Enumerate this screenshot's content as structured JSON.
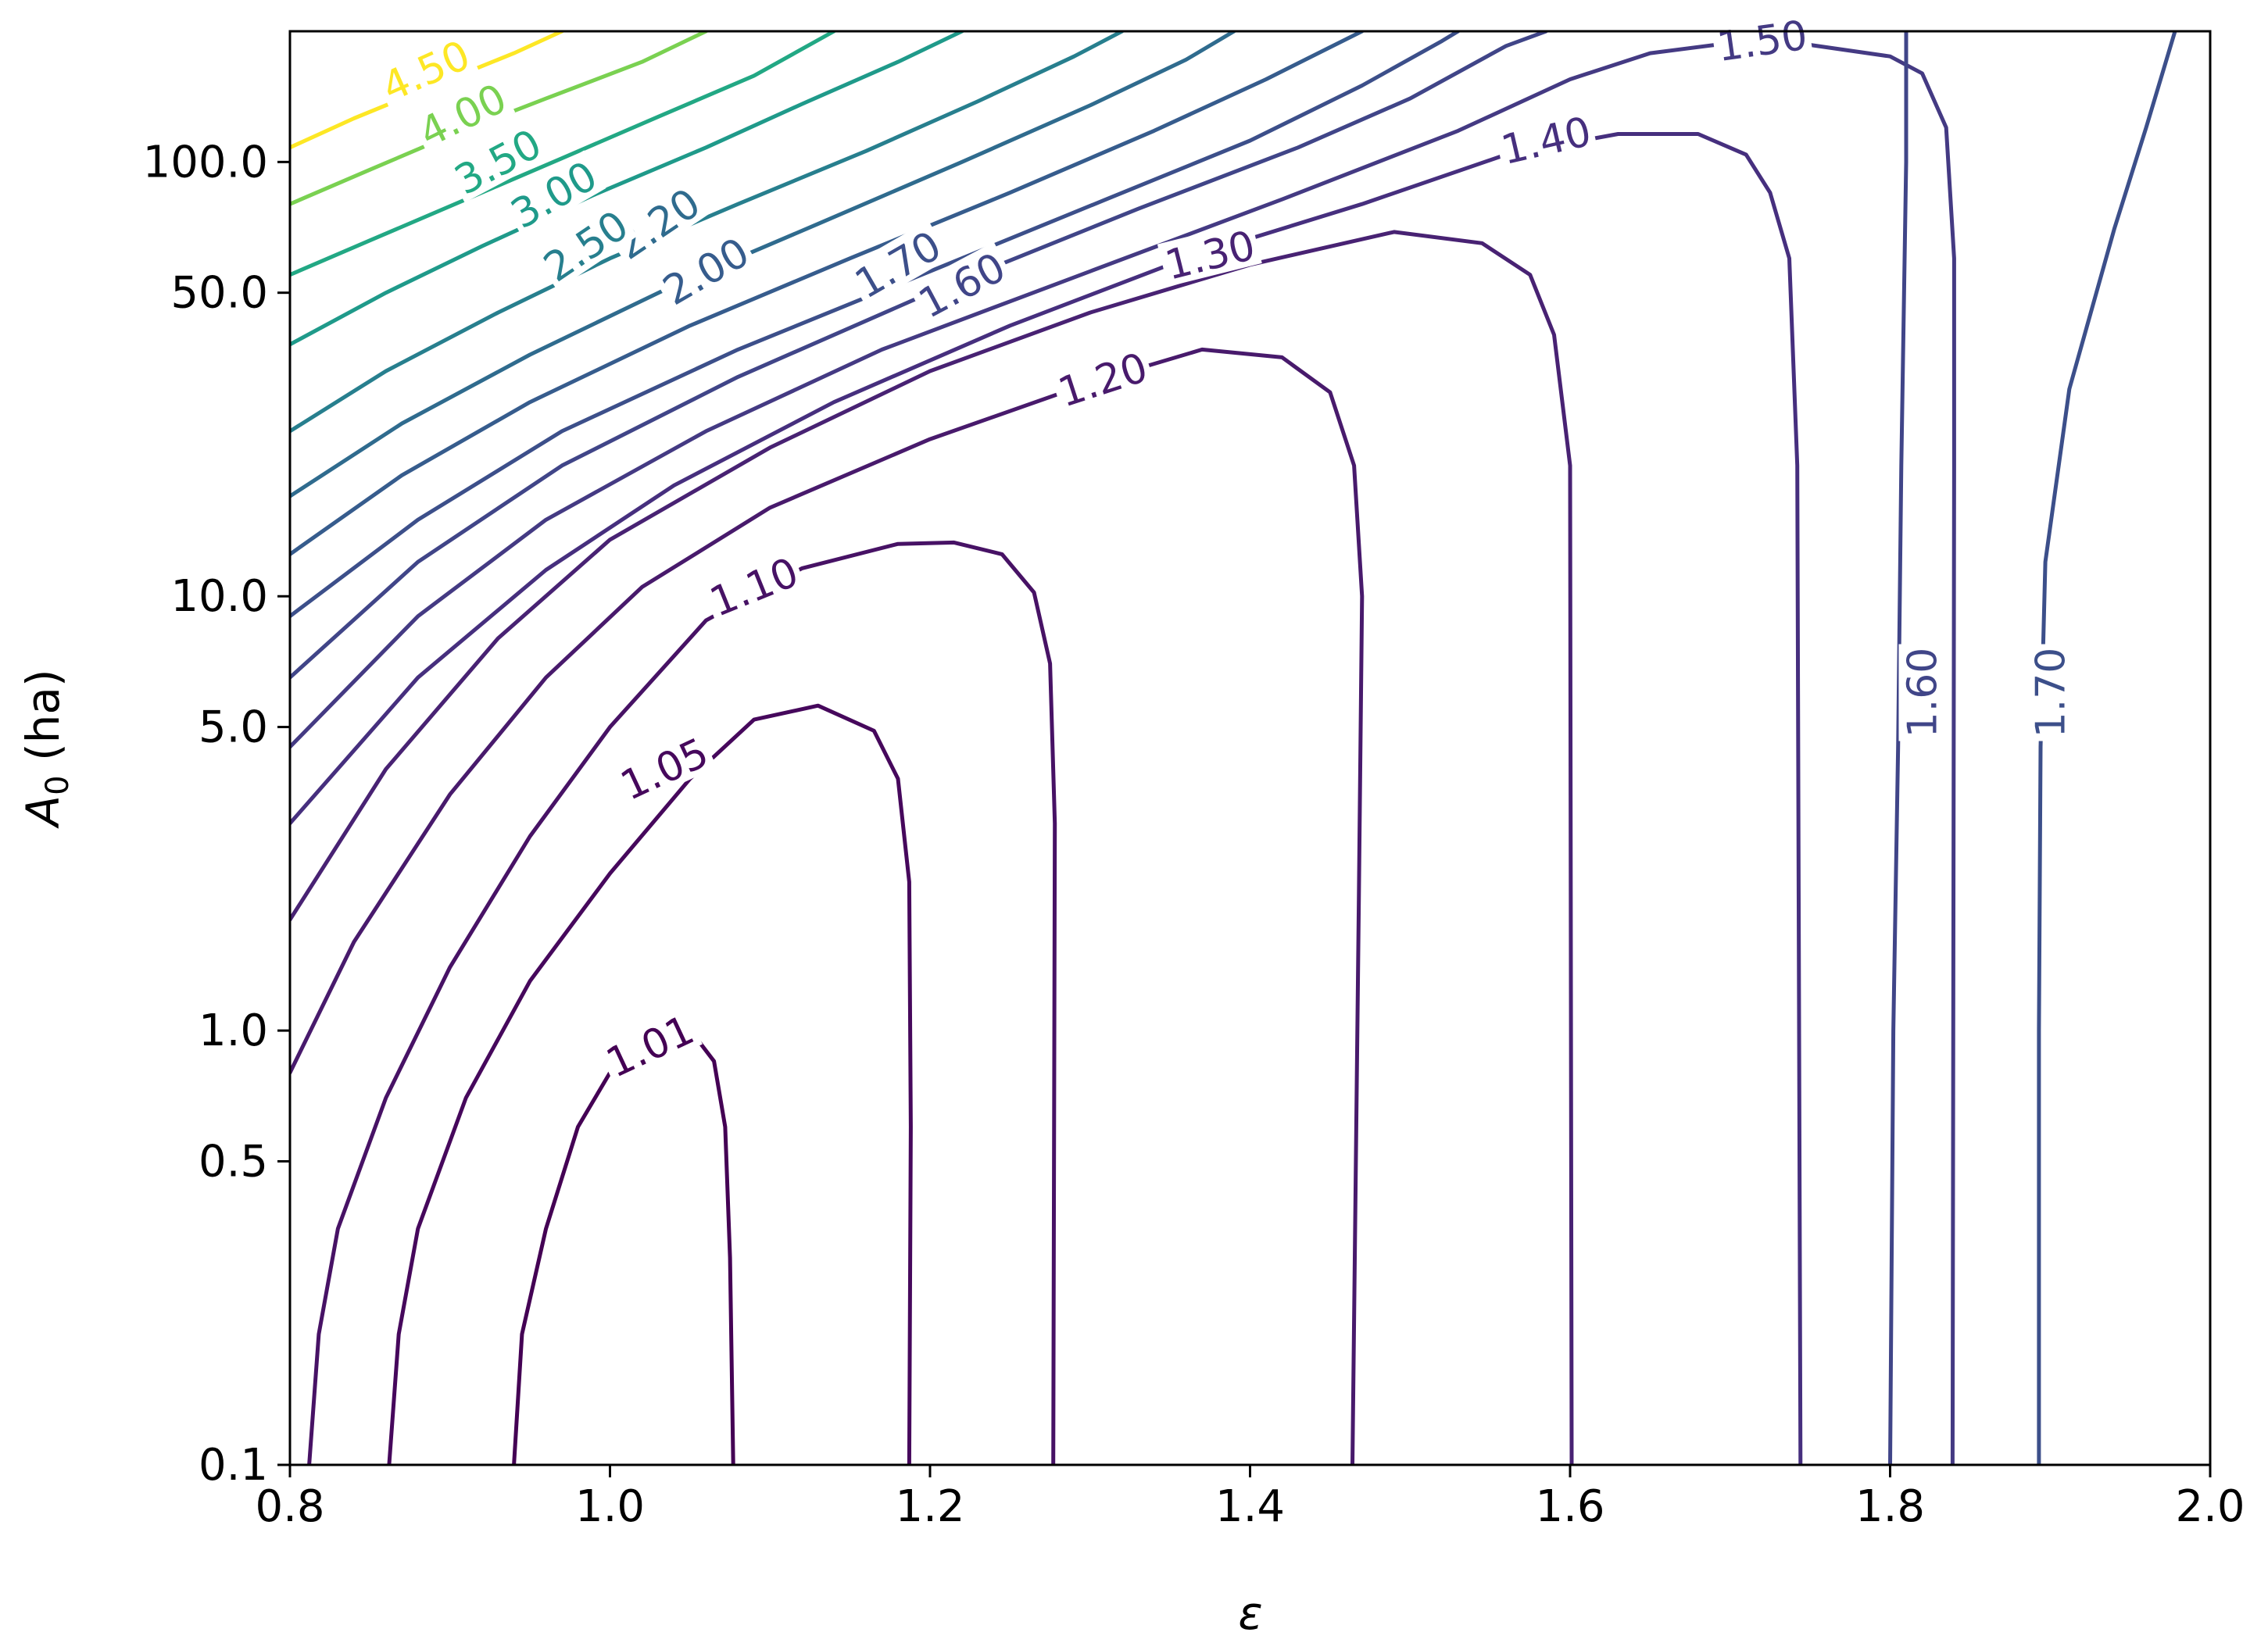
{
  "chart_data": {
    "type": "contour",
    "title": "",
    "xlabel": "ε",
    "ylabel_main": "A",
    "ylabel_sub": "0",
    "ylabel_rest": " (ha)",
    "xlim": [
      0.8,
      2.0
    ],
    "ylim": [
      0.1,
      200
    ],
    "y_scale": "log",
    "grid": false,
    "colormap": "viridis",
    "x_ticks": [
      "0.8",
      "1.0",
      "1.2",
      "1.4",
      "1.6",
      "1.8",
      "2.0"
    ],
    "y_ticks": [
      "0.1",
      "0.5",
      "1.0",
      "5.0",
      "10.0",
      "50.0",
      "100.0"
    ],
    "levels": [
      {
        "level": 1.01,
        "label": "1.01",
        "color": "#440154",
        "points": [
          [
            0.94,
            0.1
          ],
          [
            0.945,
            0.2
          ],
          [
            0.96,
            0.35
          ],
          [
            0.98,
            0.6
          ],
          [
            1.0,
            0.8
          ],
          [
            1.02,
            1.0
          ],
          [
            1.04,
            1.02
          ],
          [
            1.055,
            0.95
          ],
          [
            1.065,
            0.85
          ],
          [
            1.072,
            0.6
          ],
          [
            1.075,
            0.3
          ],
          [
            1.077,
            0.1
          ]
        ],
        "labels": [
          {
            "x": 1.025,
            "y": 0.92,
            "angle": -25
          }
        ]
      },
      {
        "level": 1.05,
        "label": "1.05",
        "color": "#46085c",
        "points": [
          [
            0.862,
            0.1
          ],
          [
            0.868,
            0.2
          ],
          [
            0.88,
            0.35
          ],
          [
            0.91,
            0.7
          ],
          [
            0.95,
            1.3
          ],
          [
            1.0,
            2.3
          ],
          [
            1.05,
            3.8
          ],
          [
            1.09,
            5.2
          ],
          [
            1.13,
            5.6
          ],
          [
            1.165,
            4.9
          ],
          [
            1.18,
            3.8
          ],
          [
            1.187,
            2.2
          ],
          [
            1.188,
            0.6
          ],
          [
            1.187,
            0.1
          ]
        ],
        "labels": [
          {
            "x": 1.034,
            "y": 4.0,
            "angle": -25
          }
        ]
      },
      {
        "level": 1.1,
        "label": "1.10",
        "color": "#471265",
        "points": [
          [
            0.812,
            0.1
          ],
          [
            0.818,
            0.2
          ],
          [
            0.83,
            0.35
          ],
          [
            0.86,
            0.7
          ],
          [
            0.9,
            1.4
          ],
          [
            0.95,
            2.8
          ],
          [
            1.0,
            5.0
          ],
          [
            1.06,
            8.8
          ],
          [
            1.12,
            11.6
          ],
          [
            1.18,
            13.2
          ],
          [
            1.215,
            13.3
          ],
          [
            1.245,
            12.5
          ],
          [
            1.265,
            10.2
          ],
          [
            1.275,
            7.0
          ],
          [
            1.278,
            3.0
          ],
          [
            1.277,
            0.1
          ]
        ],
        "labels": [
          {
            "x": 1.09,
            "y": 10.5,
            "angle": -22
          }
        ]
      },
      {
        "level": 1.2,
        "label": "1.20",
        "color": "#481a6c",
        "points": [
          [
            0.8,
            0.8
          ],
          [
            0.84,
            1.6
          ],
          [
            0.9,
            3.5
          ],
          [
            0.96,
            6.5
          ],
          [
            1.02,
            10.5
          ],
          [
            1.1,
            16.0
          ],
          [
            1.2,
            23.0
          ],
          [
            1.3,
            31.0
          ],
          [
            1.37,
            37.0
          ],
          [
            1.42,
            35.5
          ],
          [
            1.45,
            29.5
          ],
          [
            1.465,
            20.0
          ],
          [
            1.47,
            10.0
          ],
          [
            1.468,
            2.0
          ],
          [
            1.464,
            0.1
          ]
        ],
        "labels": [
          {
            "x": 1.308,
            "y": 31.5,
            "angle": -18
          }
        ]
      },
      {
        "level": 1.3,
        "label": "1.30",
        "color": "#482273",
        "points": [
          [
            0.8,
            1.8
          ],
          [
            0.86,
            4.0
          ],
          [
            0.93,
            8.0
          ],
          [
            1.0,
            13.5
          ],
          [
            1.1,
            22.0
          ],
          [
            1.2,
            33.0
          ],
          [
            1.3,
            45.0
          ],
          [
            1.4,
            58.0
          ],
          [
            1.49,
            69.0
          ],
          [
            1.545,
            65.0
          ],
          [
            1.575,
            55.0
          ],
          [
            1.59,
            40.0
          ],
          [
            1.6,
            20.0
          ],
          [
            1.601,
            0.1
          ]
        ],
        "labels": [
          {
            "x": 1.375,
            "y": 61.0,
            "angle": -14
          }
        ]
      },
      {
        "level": 1.4,
        "label": "1.40",
        "color": "#462f7e",
        "points": [
          [
            0.8,
            3.0
          ],
          [
            0.88,
            6.5
          ],
          [
            0.96,
            11.5
          ],
          [
            1.04,
            18.0
          ],
          [
            1.14,
            28.0
          ],
          [
            1.25,
            42.0
          ],
          [
            1.36,
            60.0
          ],
          [
            1.47,
            80.0
          ],
          [
            1.56,
            104.0
          ],
          [
            1.63,
            116.0
          ],
          [
            1.68,
            116.0
          ],
          [
            1.71,
            104.0
          ],
          [
            1.725,
            85.0
          ],
          [
            1.737,
            60.0
          ],
          [
            1.742,
            20.0
          ],
          [
            1.744,
            0.1
          ]
        ],
        "labels": [
          {
            "x": 1.585,
            "y": 112.0,
            "angle": -13
          }
        ]
      },
      {
        "level": 1.5,
        "label": "1.50",
        "color": "#443a83",
        "points": [
          [
            0.8,
            4.5
          ],
          [
            0.88,
            9.0
          ],
          [
            0.96,
            15.0
          ],
          [
            1.06,
            24.0
          ],
          [
            1.17,
            37.0
          ],
          [
            1.3,
            56.0
          ],
          [
            1.42,
            82.0
          ],
          [
            1.53,
            118.0
          ],
          [
            1.6,
            155.0
          ],
          [
            1.65,
            178.0
          ],
          [
            1.71,
            190.0
          ],
          [
            1.75,
            186.0
          ],
          [
            1.8,
            175.0
          ],
          [
            1.82,
            160.0
          ],
          [
            1.835,
            120.0
          ],
          [
            1.84,
            60.0
          ],
          [
            1.84,
            20.0
          ],
          [
            1.839,
            0.1
          ]
        ],
        "labels": [
          {
            "x": 1.72,
            "y": 190.0,
            "angle": -8
          }
        ]
      },
      {
        "level": 1.6,
        "label": "1.60",
        "color": "#404588",
        "points": [
          [
            0.8,
            6.5
          ],
          [
            0.88,
            12.0
          ],
          [
            0.97,
            20.0
          ],
          [
            1.08,
            32.0
          ],
          [
            1.2,
            50.0
          ],
          [
            1.33,
            78.0
          ],
          [
            1.43,
            108.0
          ],
          [
            1.5,
            140.0
          ],
          [
            1.56,
            185.0
          ],
          [
            1.585,
            200.0
          ]
        ],
        "labels": [
          {
            "x": 1.22,
            "y": 52.0,
            "angle": -28
          },
          {
            "x": 1.82,
            "y": 6.0,
            "angle": -90
          }
        ],
        "tail": [
          [
            2.0,
            0.1
          ],
          [
            1.99,
            0.1
          ]
        ],
        "vertical": [
          [
            1.8,
            0.1
          ],
          [
            1.802,
            1.0
          ],
          [
            1.805,
            4.5
          ],
          [
            1.807,
            20.0
          ],
          [
            1.81,
            100.0
          ],
          [
            1.81,
            200.0
          ]
        ]
      },
      {
        "level": 1.7,
        "label": "1.70",
        "color": "#3c4f8a",
        "points": [
          [
            0.8,
            9.0
          ],
          [
            0.88,
            15.0
          ],
          [
            0.97,
            24.0
          ],
          [
            1.08,
            37.0
          ],
          [
            1.2,
            56.0
          ],
          [
            1.31,
            82.0
          ],
          [
            1.4,
            112.0
          ],
          [
            1.47,
            150.0
          ],
          [
            1.52,
            190.0
          ],
          [
            1.53,
            200.0
          ]
        ],
        "labels": [
          {
            "x": 1.18,
            "y": 58.0,
            "angle": -30
          },
          {
            "x": 1.9,
            "y": 6.0,
            "angle": -90
          }
        ],
        "vertical": [
          [
            1.893,
            0.1
          ],
          [
            1.893,
            1.0
          ],
          [
            1.894,
            4.5
          ],
          [
            1.897,
            12.0
          ],
          [
            1.912,
            30.0
          ],
          [
            1.94,
            70.0
          ],
          [
            1.96,
            120.0
          ],
          [
            1.978,
            200.0
          ]
        ]
      },
      {
        "level": 2.0,
        "label": "2.00",
        "color": "#365c8d",
        "points": [
          [
            0.8,
            12.5
          ],
          [
            0.87,
            19.0
          ],
          [
            0.95,
            28.0
          ],
          [
            1.05,
            42.0
          ],
          [
            1.15,
            60.0
          ],
          [
            1.25,
            85.0
          ],
          [
            1.34,
            118.0
          ],
          [
            1.41,
            155.0
          ],
          [
            1.47,
            200.0
          ]
        ],
        "labels": [
          {
            "x": 1.06,
            "y": 56.0,
            "angle": -30
          }
        ]
      },
      {
        "level": 2.2,
        "label": "2.20",
        "color": "#2f6b8e",
        "points": [
          [
            0.8,
            17.0
          ],
          [
            0.87,
            25.0
          ],
          [
            0.95,
            36.0
          ],
          [
            1.04,
            52.0
          ],
          [
            1.13,
            72.0
          ],
          [
            1.22,
            100.0
          ],
          [
            1.3,
            135.0
          ],
          [
            1.36,
            172.0
          ],
          [
            1.39,
            200.0
          ]
        ],
        "labels": [
          {
            "x": 1.03,
            "y": 72.0,
            "angle": -34
          }
        ]
      },
      {
        "level": 2.5,
        "label": "2.50",
        "color": "#277f8e",
        "points": [
          [
            0.8,
            24.0
          ],
          [
            0.86,
            33.0
          ],
          [
            0.93,
            45.0
          ],
          [
            1.0,
            60.0
          ],
          [
            1.08,
            80.0
          ],
          [
            1.16,
            106.0
          ],
          [
            1.23,
            138.0
          ],
          [
            1.29,
            175.0
          ],
          [
            1.32,
            200.0
          ]
        ],
        "labels": [
          {
            "x": 0.985,
            "y": 64.0,
            "angle": -34
          }
        ]
      },
      {
        "level": 3.0,
        "label": "3.00",
        "color": "#1f9a8a",
        "points": [
          [
            0.8,
            38.0
          ],
          [
            0.86,
            50.0
          ],
          [
            0.92,
            64.0
          ],
          [
            0.99,
            84.0
          ],
          [
            1.06,
            108.0
          ],
          [
            1.12,
            136.0
          ],
          [
            1.18,
            170.0
          ],
          [
            1.22,
            200.0
          ]
        ],
        "labels": [
          {
            "x": 0.965,
            "y": 84.0,
            "angle": -30
          }
        ]
      },
      {
        "level": 3.5,
        "label": "3.50",
        "color": "#22a884",
        "points": [
          [
            0.8,
            55.0
          ],
          [
            0.85,
            66.0
          ],
          [
            0.91,
            82.0
          ],
          [
            0.97,
            102.0
          ],
          [
            1.03,
            127.0
          ],
          [
            1.09,
            158.0
          ],
          [
            1.14,
            200.0
          ]
        ],
        "labels": [
          {
            "x": 0.93,
            "y": 100.0,
            "angle": -28
          }
        ]
      },
      {
        "level": 4.0,
        "label": "4.00",
        "color": "#7ad151",
        "points": [
          [
            0.8,
            80.0
          ],
          [
            0.85,
            96.0
          ],
          [
            0.9,
            115.0
          ],
          [
            0.96,
            140.0
          ],
          [
            1.02,
            170.0
          ],
          [
            1.06,
            200.0
          ]
        ],
        "labels": [
          {
            "x": 0.908,
            "y": 128.0,
            "angle": -26
          }
        ]
      },
      {
        "level": 4.5,
        "label": "4.50",
        "color": "#fde725",
        "points": [
          [
            0.8,
            108.0
          ],
          [
            0.84,
            126.0
          ],
          [
            0.89,
            150.0
          ],
          [
            0.94,
            178.0
          ],
          [
            0.97,
            200.0
          ]
        ],
        "labels": [
          {
            "x": 0.885,
            "y": 162.0,
            "angle": -24
          }
        ]
      }
    ]
  }
}
